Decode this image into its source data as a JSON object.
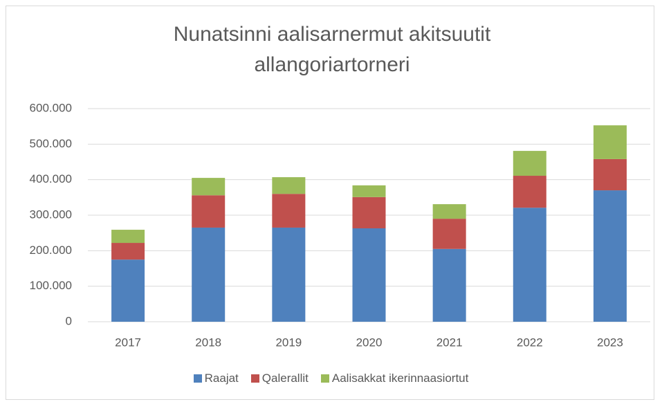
{
  "chart_data": {
    "type": "stacked_bar",
    "title": "Nunatsinni aalisarnermut akitsuutit allangoriartorneri",
    "categories": [
      "2017",
      "2018",
      "2019",
      "2020",
      "2021",
      "2022",
      "2023"
    ],
    "series": [
      {
        "name": "Raajat",
        "color": "#4f81bd",
        "values": [
          175000,
          265000,
          265000,
          263000,
          205000,
          321000,
          370000
        ]
      },
      {
        "name": "Qalerallit",
        "color": "#c0504d",
        "values": [
          47000,
          91000,
          95000,
          88000,
          85000,
          90000,
          88000
        ]
      },
      {
        "name": "Aalisakkat ikerinnaasiortut",
        "color": "#9bbb59",
        "values": [
          37000,
          49000,
          47000,
          33000,
          41000,
          70000,
          95000
        ]
      }
    ],
    "ylim": [
      0,
      600000
    ],
    "yticks": [
      0,
      {
        "value": 100000,
        "label": "100.000"
      },
      {
        "value": 200000,
        "label": "200.000"
      },
      {
        "value": 300000,
        "label": "300.000"
      },
      {
        "value": 400000,
        "label": "400.000"
      },
      {
        "value": 500000,
        "label": "500.000"
      },
      {
        "value": 600000,
        "label": "600.000"
      }
    ],
    "grid": true,
    "legend": "bottom"
  }
}
